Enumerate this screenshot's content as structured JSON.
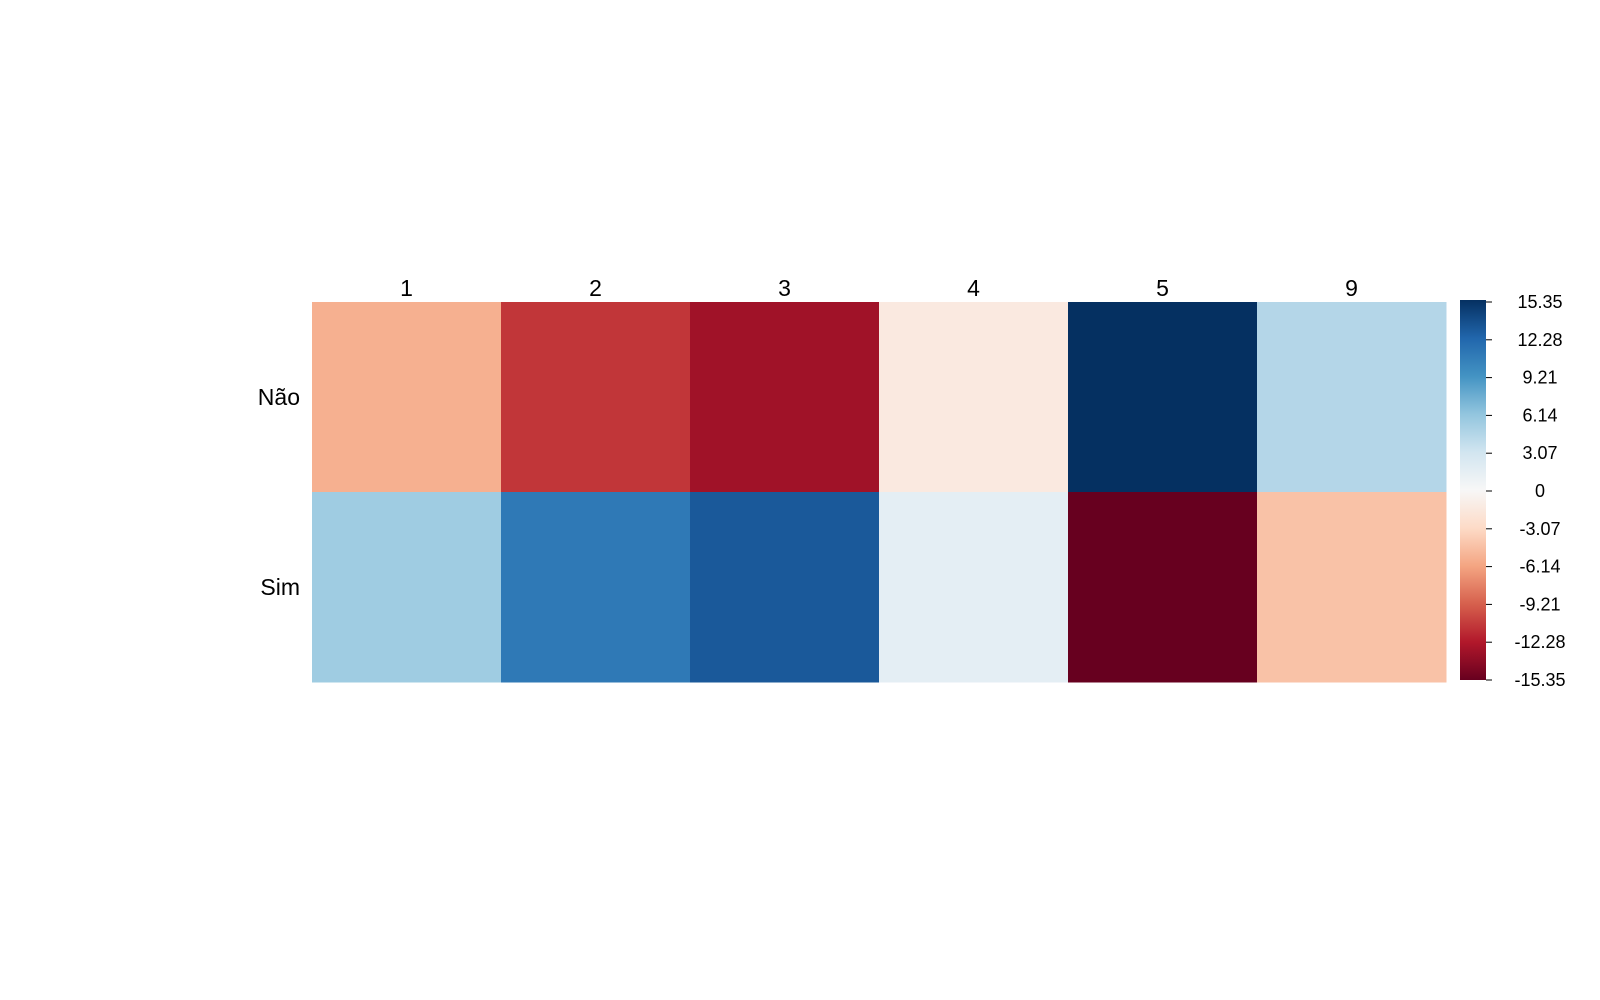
{
  "chart_data": {
    "type": "heatmap",
    "title": "",
    "xlabel": "",
    "ylabel": "",
    "x_categories": [
      "1",
      "2",
      "3",
      "4",
      "5",
      "9"
    ],
    "y_categories": [
      "Não",
      "Sim"
    ],
    "values": [
      [
        -5.5,
        -11.0,
        -13.0,
        -1.5,
        15.35,
        4.5
      ],
      [
        5.5,
        11.0,
        13.0,
        1.5,
        -15.35,
        -4.5
      ]
    ],
    "color_range": [
      -15.35,
      15.35
    ],
    "color_scale": "RdBu",
    "legend": {
      "placement": "right",
      "ticks": [
        "15.35",
        "12.28",
        "9.21",
        "6.14",
        "3.07",
        "0",
        "-3.07",
        "-6.14",
        "-9.21",
        "-12.28",
        "-15.35"
      ]
    },
    "grid": false
  }
}
